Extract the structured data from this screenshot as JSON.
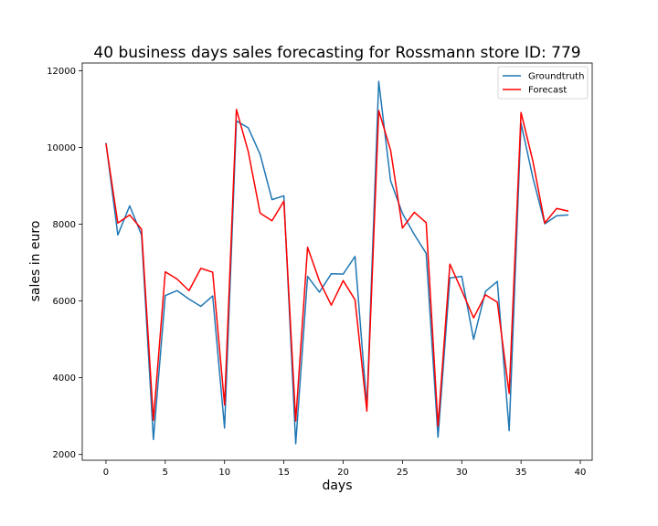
{
  "chart_data": {
    "type": "line",
    "title": "40 business days sales forecasting for Rossmann store ID: 779",
    "xlabel": "days",
    "ylabel": "sales in euro",
    "xlim": [
      -2,
      41
    ],
    "ylim": [
      1850,
      12200
    ],
    "xticks": [
      0,
      5,
      10,
      15,
      20,
      25,
      30,
      35,
      40
    ],
    "yticks": [
      2000,
      4000,
      6000,
      8000,
      10000,
      12000
    ],
    "grid": false,
    "legend_position": "upper-right",
    "x": [
      0,
      1,
      2,
      3,
      4,
      5,
      6,
      7,
      8,
      9,
      10,
      11,
      12,
      13,
      14,
      15,
      16,
      17,
      18,
      19,
      20,
      21,
      22,
      23,
      24,
      25,
      26,
      27,
      28,
      29,
      30,
      31,
      32,
      33,
      34,
      35,
      36,
      37,
      38,
      39
    ],
    "series": [
      {
        "name": "Groundtruth",
        "color": "#1f77b4",
        "values": [
          10120,
          7720,
          8480,
          7720,
          2390,
          6140,
          6270,
          6050,
          5860,
          6130,
          2690,
          10690,
          10510,
          9820,
          8640,
          8740,
          2280,
          6640,
          6230,
          6710,
          6700,
          7160,
          3230,
          11720,
          9130,
          8280,
          7730,
          7240,
          2450,
          6600,
          6640,
          5000,
          6250,
          6510,
          2620,
          10630,
          9210,
          8010,
          8220,
          8240
        ]
      },
      {
        "name": "Forecast",
        "color": "#ff0000",
        "values": [
          10100,
          8030,
          8240,
          7870,
          2890,
          6760,
          6570,
          6270,
          6850,
          6750,
          3290,
          10990,
          9890,
          8290,
          8090,
          8600,
          2870,
          7400,
          6520,
          5890,
          6530,
          6030,
          3130,
          10960,
          9930,
          7900,
          8310,
          8040,
          2740,
          6960,
          6270,
          5560,
          6160,
          5970,
          3590,
          10910,
          9640,
          8030,
          8410,
          8340
        ]
      }
    ]
  }
}
